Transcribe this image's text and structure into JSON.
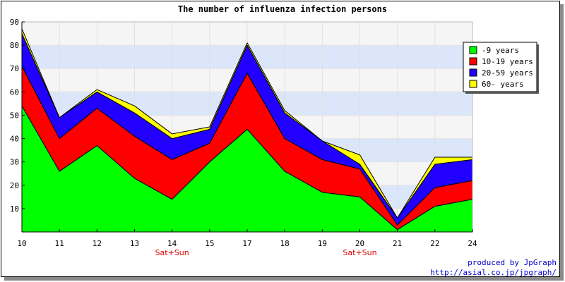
{
  "chart_data": {
    "type": "area",
    "stacked": true,
    "title": "The number of influenza infection persons",
    "xlabel": "",
    "ylabel": "",
    "x": [
      10,
      11,
      12,
      13,
      14,
      15,
      17,
      18,
      19,
      20,
      21,
      22,
      24
    ],
    "x_tick_labels": [
      "10",
      "11",
      "12",
      "13",
      "14",
      "15",
      "17",
      "18",
      "19",
      "20",
      "21",
      "22",
      "24"
    ],
    "x_annotations": [
      {
        "at": "14",
        "text": "Sat+Sun"
      },
      {
        "at": "20",
        "text": "Sat+Sun"
      }
    ],
    "ylim": [
      0,
      90
    ],
    "y_ticks": [
      10,
      20,
      30,
      40,
      50,
      60,
      70,
      80,
      90
    ],
    "series": [
      {
        "name": "-9 years",
        "color": "#00ff00",
        "values": [
          54,
          26,
          37,
          23,
          14,
          30,
          44,
          26,
          17,
          15,
          1,
          11,
          14
        ]
      },
      {
        "name": "10-19 years",
        "color": "#ff0000",
        "values": [
          17,
          14,
          16,
          18,
          17,
          8,
          24,
          14,
          14,
          12,
          2,
          8,
          8
        ]
      },
      {
        "name": "20-59 years",
        "color": "#2200ff",
        "values": [
          14,
          9,
          7,
          10,
          9,
          6,
          12,
          11,
          8,
          2,
          3,
          10,
          9
        ]
      },
      {
        "name": "60- years",
        "color": "#ffff00",
        "values": [
          2,
          0,
          1,
          3,
          2,
          1,
          1,
          1,
          0,
          4,
          0,
          3,
          1
        ]
      }
    ],
    "grid": true,
    "background_bands": [
      "#f5f5f5",
      "#dce6fa"
    ],
    "legend_position": "top-right"
  },
  "credit": {
    "line1": "produced by JpGraph",
    "line2": "http://asial.co.jp/jpgraph/"
  }
}
